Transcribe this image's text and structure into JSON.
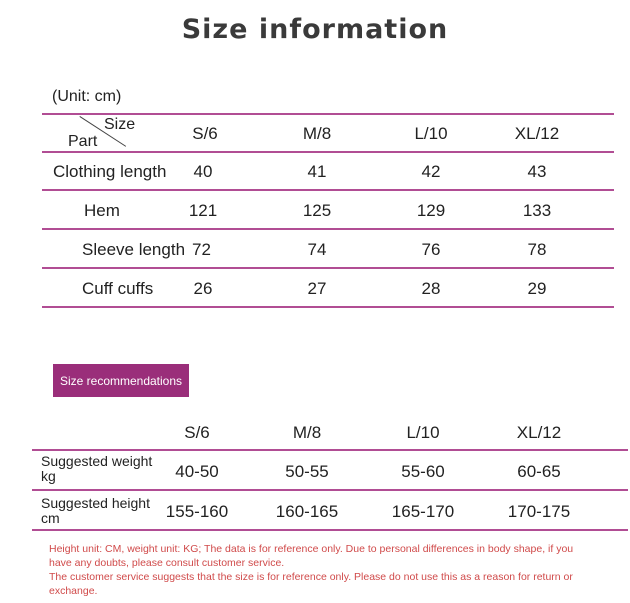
{
  "title": "Size information",
  "unit_label": "(Unit: cm)",
  "size_table": {
    "corner_top": "Size",
    "corner_bottom": "Part",
    "sizes": [
      "S/6",
      "M/8",
      "L/10",
      "XL/12"
    ],
    "rows": [
      {
        "part": "Clothing length",
        "values": [
          "40",
          "41",
          "42",
          "43"
        ]
      },
      {
        "part": "Hem",
        "values": [
          "121",
          "125",
          "129",
          "133"
        ]
      },
      {
        "part": "Sleeve length",
        "values": [
          "72",
          "74",
          "76",
          "78"
        ]
      },
      {
        "part": "Cuff cuffs",
        "values": [
          "26",
          "27",
          "28",
          "29"
        ]
      }
    ]
  },
  "recommendations": {
    "badge": "Size recommendations",
    "sizes": [
      "S/6",
      "M/8",
      "L/10",
      "XL/12"
    ],
    "rows": [
      {
        "label_line1": "Suggested weight",
        "label_line2": "kg",
        "values": [
          "40-50",
          "50-55",
          "55-60",
          "60-65"
        ]
      },
      {
        "label_line1": "Suggested height",
        "label_line2": "cm",
        "values": [
          "155-160",
          "160-165",
          "165-170",
          "170-175"
        ]
      }
    ]
  },
  "notes": {
    "line1": "Height unit: CM, weight unit: KG; The data is for reference only. Due to personal differences in body shape, if you",
    "line2": "have any doubts, please consult customer service.",
    "line3": "The customer service suggests that the size is for reference only. Please do not use this as a reason for return or",
    "line4": "exchange."
  },
  "colors": {
    "accent": "#b14d94",
    "badge": "#9a2e7a",
    "note": "#d04a4a"
  }
}
